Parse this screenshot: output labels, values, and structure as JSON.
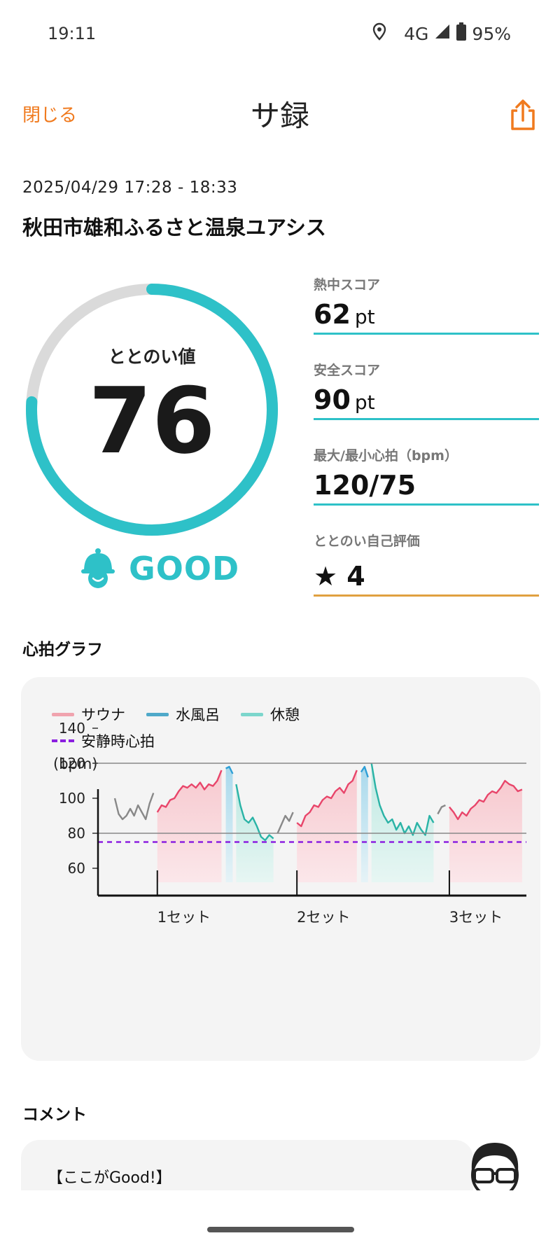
{
  "status_bar": {
    "time": "19:11",
    "network": "4G",
    "battery": "95%"
  },
  "header": {
    "close_label": "閉じる",
    "title": "サ録"
  },
  "session": {
    "datetime": "2025/04/29 17:28 - 18:33",
    "place": "秋田市雄和ふるさと温泉ユアシス"
  },
  "totonoi": {
    "label": "ととのい値",
    "value": "76",
    "progress": 0.76,
    "rating": "GOOD"
  },
  "scores": [
    {
      "label": "熱中スコア",
      "value": "62",
      "unit": "pt",
      "line_color": "#2EC1C8"
    },
    {
      "label": "安全スコア",
      "value": "90",
      "unit": "pt",
      "line_color": "#2EC1C8"
    },
    {
      "label": "最大/最小心拍（bpm）",
      "value": "120/75",
      "unit": "",
      "line_color": "#2EC1C8"
    },
    {
      "label": "ととのい自己評価",
      "value": "★ 4",
      "unit": "",
      "line_color": "#E0A040"
    }
  ],
  "graph": {
    "section_title": "心拍グラフ",
    "legend": {
      "sauna": "サウナ",
      "cold_bath": "水風呂",
      "rest": "休憩",
      "resting_hr": "安静時心拍"
    },
    "unit": "(bpm)"
  },
  "chart_data": {
    "type": "line",
    "ylabel": "(bpm)",
    "ylim": [
      50,
      150
    ],
    "yticks": [
      140,
      120,
      100,
      80,
      60
    ],
    "categories": [
      "1セット",
      "2セット",
      "3セット"
    ],
    "reference_lines": [
      120,
      80
    ],
    "resting_hr": 75,
    "colors": {
      "sauna": "#E8456A",
      "sauna_fill": "#F7C9CF",
      "cold_bath": "#2E9FD6",
      "rest": "#2AB3A6",
      "rest_fill": "#BFE9E2",
      "other": "#888888",
      "resting": "#8B1FE0"
    },
    "segments": [
      {
        "kind": "other",
        "values": [
          100,
          91,
          88,
          90,
          94,
          90,
          96,
          92,
          88,
          97,
          103
        ]
      },
      {
        "kind": "sauna",
        "values": [
          92,
          96,
          95,
          99,
          100,
          104,
          107,
          106,
          108,
          106,
          109,
          105,
          108,
          107,
          110,
          116
        ]
      },
      {
        "kind": "cold_bath",
        "values": [
          117,
          118,
          114
        ]
      },
      {
        "kind": "rest",
        "values": [
          108,
          96,
          88,
          86,
          89,
          84,
          78,
          76,
          79,
          77
        ]
      },
      {
        "kind": "other",
        "values": [
          80,
          85,
          90,
          87,
          92
        ]
      },
      {
        "kind": "sauna",
        "values": [
          86,
          84,
          90,
          92,
          96,
          95,
          99,
          101,
          100,
          104,
          106,
          103,
          108,
          110,
          116
        ]
      },
      {
        "kind": "cold_bath",
        "values": [
          115,
          118,
          112
        ]
      },
      {
        "kind": "rest",
        "values": [
          120,
          106,
          96,
          90,
          86,
          88,
          82,
          86,
          80,
          84,
          79,
          86,
          82,
          79,
          90,
          86
        ]
      },
      {
        "kind": "other",
        "values": [
          91,
          95,
          96
        ]
      },
      {
        "kind": "sauna",
        "values": [
          95,
          92,
          88,
          92,
          90,
          94,
          96,
          99,
          98,
          102,
          104,
          103,
          106,
          110,
          108,
          107,
          104,
          105
        ]
      }
    ]
  },
  "comment": {
    "section_title": "コメント",
    "text": "【ここがGood!】"
  }
}
